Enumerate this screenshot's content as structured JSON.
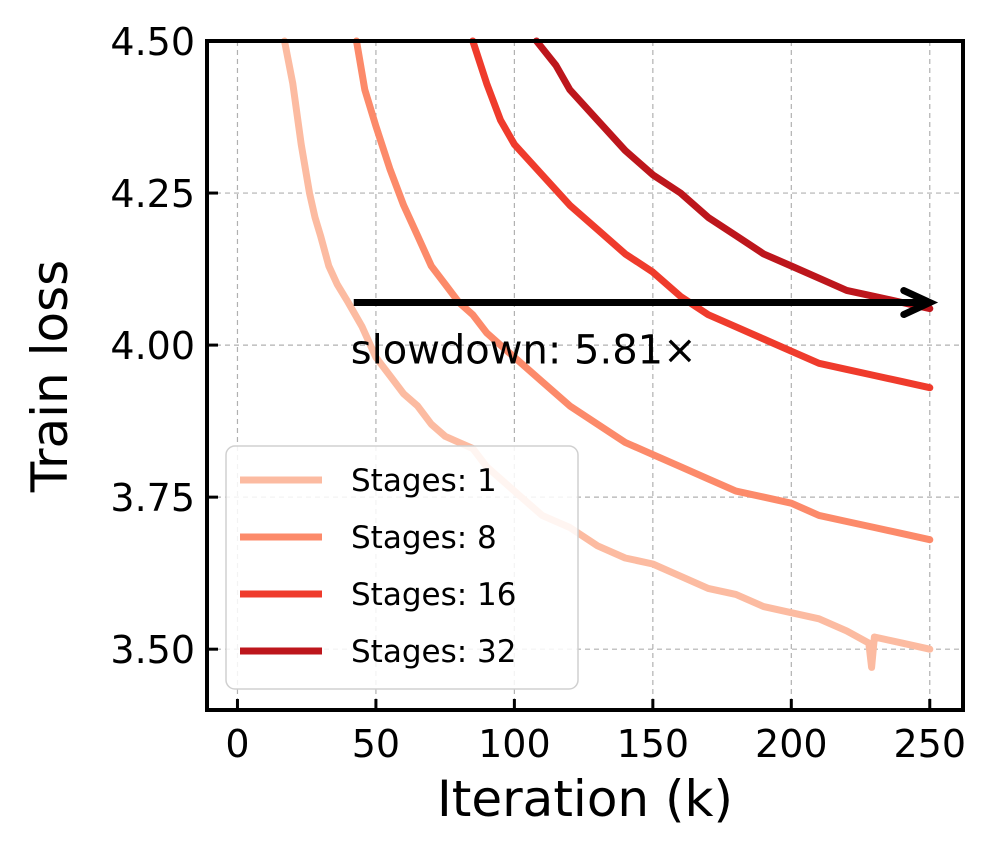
{
  "chart_data": {
    "type": "line",
    "xlabel": "Iteration (k)",
    "ylabel": "Train loss",
    "xlim": [
      -11,
      262
    ],
    "ylim": [
      3.4,
      4.5
    ],
    "xticks": [
      0,
      50,
      100,
      150,
      200,
      250
    ],
    "yticks": [
      3.5,
      3.75,
      4.0,
      4.25,
      4.5
    ],
    "xtick_labels": [
      "0",
      "50",
      "100",
      "150",
      "200",
      "250"
    ],
    "ytick_labels": [
      "3.50",
      "3.75",
      "4.00",
      "4.25",
      "4.50"
    ],
    "grid": true,
    "legend_position": "lower-left",
    "series": [
      {
        "name": "Stages: 1",
        "color": "#fcbba1",
        "points": [
          [
            17,
            4.5
          ],
          [
            20,
            4.43
          ],
          [
            23,
            4.33
          ],
          [
            26,
            4.25
          ],
          [
            28,
            4.21
          ],
          [
            30,
            4.18
          ],
          [
            33,
            4.13
          ],
          [
            36,
            4.1
          ],
          [
            40,
            4.07
          ],
          [
            45,
            4.03
          ],
          [
            50,
            3.98
          ],
          [
            55,
            3.95
          ],
          [
            60,
            3.92
          ],
          [
            65,
            3.9
          ],
          [
            70,
            3.87
          ],
          [
            75,
            3.85
          ],
          [
            80,
            3.84
          ],
          [
            85,
            3.83
          ],
          [
            90,
            3.8
          ],
          [
            95,
            3.78
          ],
          [
            100,
            3.76
          ],
          [
            110,
            3.72
          ],
          [
            120,
            3.7
          ],
          [
            130,
            3.67
          ],
          [
            140,
            3.65
          ],
          [
            150,
            3.64
          ],
          [
            160,
            3.62
          ],
          [
            170,
            3.6
          ],
          [
            180,
            3.59
          ],
          [
            190,
            3.57
          ],
          [
            200,
            3.56
          ],
          [
            210,
            3.55
          ],
          [
            220,
            3.53
          ],
          [
            228,
            3.51
          ],
          [
            229,
            3.47
          ],
          [
            230,
            3.52
          ],
          [
            240,
            3.51
          ],
          [
            250,
            3.5
          ]
        ]
      },
      {
        "name": "Stages: 8",
        "color": "#fc8a6a",
        "points": [
          [
            43,
            4.5
          ],
          [
            46,
            4.42
          ],
          [
            50,
            4.36
          ],
          [
            55,
            4.29
          ],
          [
            60,
            4.23
          ],
          [
            65,
            4.18
          ],
          [
            70,
            4.13
          ],
          [
            75,
            4.1
          ],
          [
            80,
            4.07
          ],
          [
            85,
            4.05
          ],
          [
            90,
            4.02
          ],
          [
            95,
            4.0
          ],
          [
            100,
            3.98
          ],
          [
            110,
            3.94
          ],
          [
            120,
            3.9
          ],
          [
            130,
            3.87
          ],
          [
            140,
            3.84
          ],
          [
            150,
            3.82
          ],
          [
            160,
            3.8
          ],
          [
            170,
            3.78
          ],
          [
            180,
            3.76
          ],
          [
            190,
            3.75
          ],
          [
            200,
            3.74
          ],
          [
            210,
            3.72
          ],
          [
            220,
            3.71
          ],
          [
            230,
            3.7
          ],
          [
            240,
            3.69
          ],
          [
            250,
            3.68
          ]
        ]
      },
      {
        "name": "Stages: 16",
        "color": "#ef3b2c",
        "points": [
          [
            85,
            4.5
          ],
          [
            90,
            4.43
          ],
          [
            95,
            4.37
          ],
          [
            100,
            4.33
          ],
          [
            110,
            4.28
          ],
          [
            120,
            4.23
          ],
          [
            130,
            4.19
          ],
          [
            140,
            4.15
          ],
          [
            150,
            4.12
          ],
          [
            160,
            4.08
          ],
          [
            170,
            4.05
          ],
          [
            180,
            4.03
          ],
          [
            190,
            4.01
          ],
          [
            200,
            3.99
          ],
          [
            210,
            3.97
          ],
          [
            220,
            3.96
          ],
          [
            230,
            3.95
          ],
          [
            240,
            3.94
          ],
          [
            250,
            3.93
          ]
        ]
      },
      {
        "name": "Stages: 32",
        "color": "#bd161c",
        "points": [
          [
            108,
            4.5
          ],
          [
            115,
            4.46
          ],
          [
            120,
            4.42
          ],
          [
            130,
            4.37
          ],
          [
            140,
            4.32
          ],
          [
            150,
            4.28
          ],
          [
            160,
            4.25
          ],
          [
            170,
            4.21
          ],
          [
            180,
            4.18
          ],
          [
            190,
            4.15
          ],
          [
            200,
            4.13
          ],
          [
            210,
            4.11
          ],
          [
            220,
            4.09
          ],
          [
            230,
            4.08
          ],
          [
            240,
            4.07
          ],
          [
            250,
            4.06
          ]
        ]
      }
    ],
    "annotations": [
      {
        "type": "arrow",
        "from": [
          42,
          4.07
        ],
        "to": [
          250,
          4.07
        ],
        "color": "#000000"
      },
      {
        "type": "text",
        "text": "slowdown: 5.81×",
        "at": [
          42,
          3.95
        ]
      }
    ]
  }
}
